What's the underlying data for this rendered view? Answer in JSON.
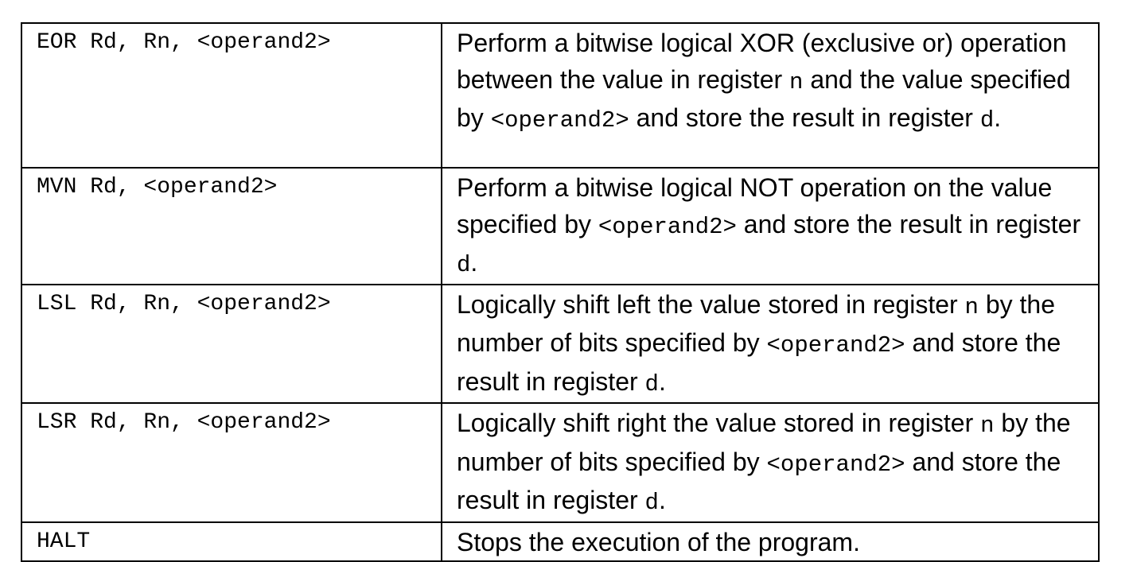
{
  "instructions": [
    {
      "syntax": "EOR Rd, Rn, <operand2>",
      "description": [
        {
          "t": "Perform a bitwise logical XOR (exclusive or) operation between the value in register "
        },
        {
          "t": "n",
          "mono": true
        },
        {
          "t": " and the value specified by "
        },
        {
          "t": "<operand2>",
          "mono": true
        },
        {
          "t": " and store the result in register "
        },
        {
          "t": "d",
          "mono": true
        },
        {
          "t": "."
        }
      ]
    },
    {
      "syntax": "MVN Rd, <operand2>",
      "description": [
        {
          "t": "Perform a bitwise logical NOT operation on the value specified by "
        },
        {
          "t": "<operand2>",
          "mono": true
        },
        {
          "t": " and store the result in register "
        },
        {
          "t": "d",
          "mono": true
        },
        {
          "t": "."
        }
      ]
    },
    {
      "syntax": "LSL Rd, Rn, <operand2>",
      "description": [
        {
          "t": "Logically shift left the value stored in register "
        },
        {
          "t": "n",
          "mono": true
        },
        {
          "t": " by the number of bits specified by "
        },
        {
          "t": "<operand2>",
          "mono": true
        },
        {
          "t": " and store the result in register "
        },
        {
          "t": "d",
          "mono": true
        },
        {
          "t": "."
        }
      ]
    },
    {
      "syntax": "LSR Rd, Rn, <operand2>",
      "description": [
        {
          "t": "Logically shift right the value stored in register "
        },
        {
          "t": "n",
          "mono": true
        },
        {
          "t": " by the number of bits specified by "
        },
        {
          "t": "<operand2>",
          "mono": true
        },
        {
          "t": " and store the result in register "
        },
        {
          "t": "d",
          "mono": true
        },
        {
          "t": "."
        }
      ]
    },
    {
      "syntax": "HALT",
      "description": [
        {
          "t": "Stops the execution of the program."
        }
      ]
    }
  ]
}
